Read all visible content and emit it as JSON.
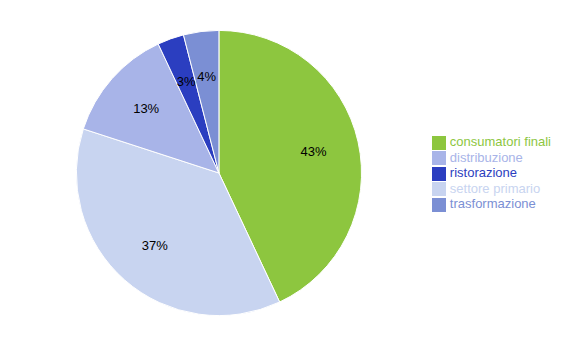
{
  "chart_data": {
    "type": "pie",
    "categories": [
      "consumatori finali",
      "settore primario",
      "distribuzione",
      "ristorazione",
      "trasformazione"
    ],
    "values": [
      43,
      37,
      13,
      3,
      4
    ],
    "value_labels": [
      "43%",
      "37%",
      "13%",
      "3%",
      "4%"
    ],
    "colors": [
      "#8DC63F",
      "#C8D4F0",
      "#A8B4E8",
      "#2B3EC0",
      "#7B8FD4"
    ],
    "data_labels": true,
    "legend": "right"
  }
}
